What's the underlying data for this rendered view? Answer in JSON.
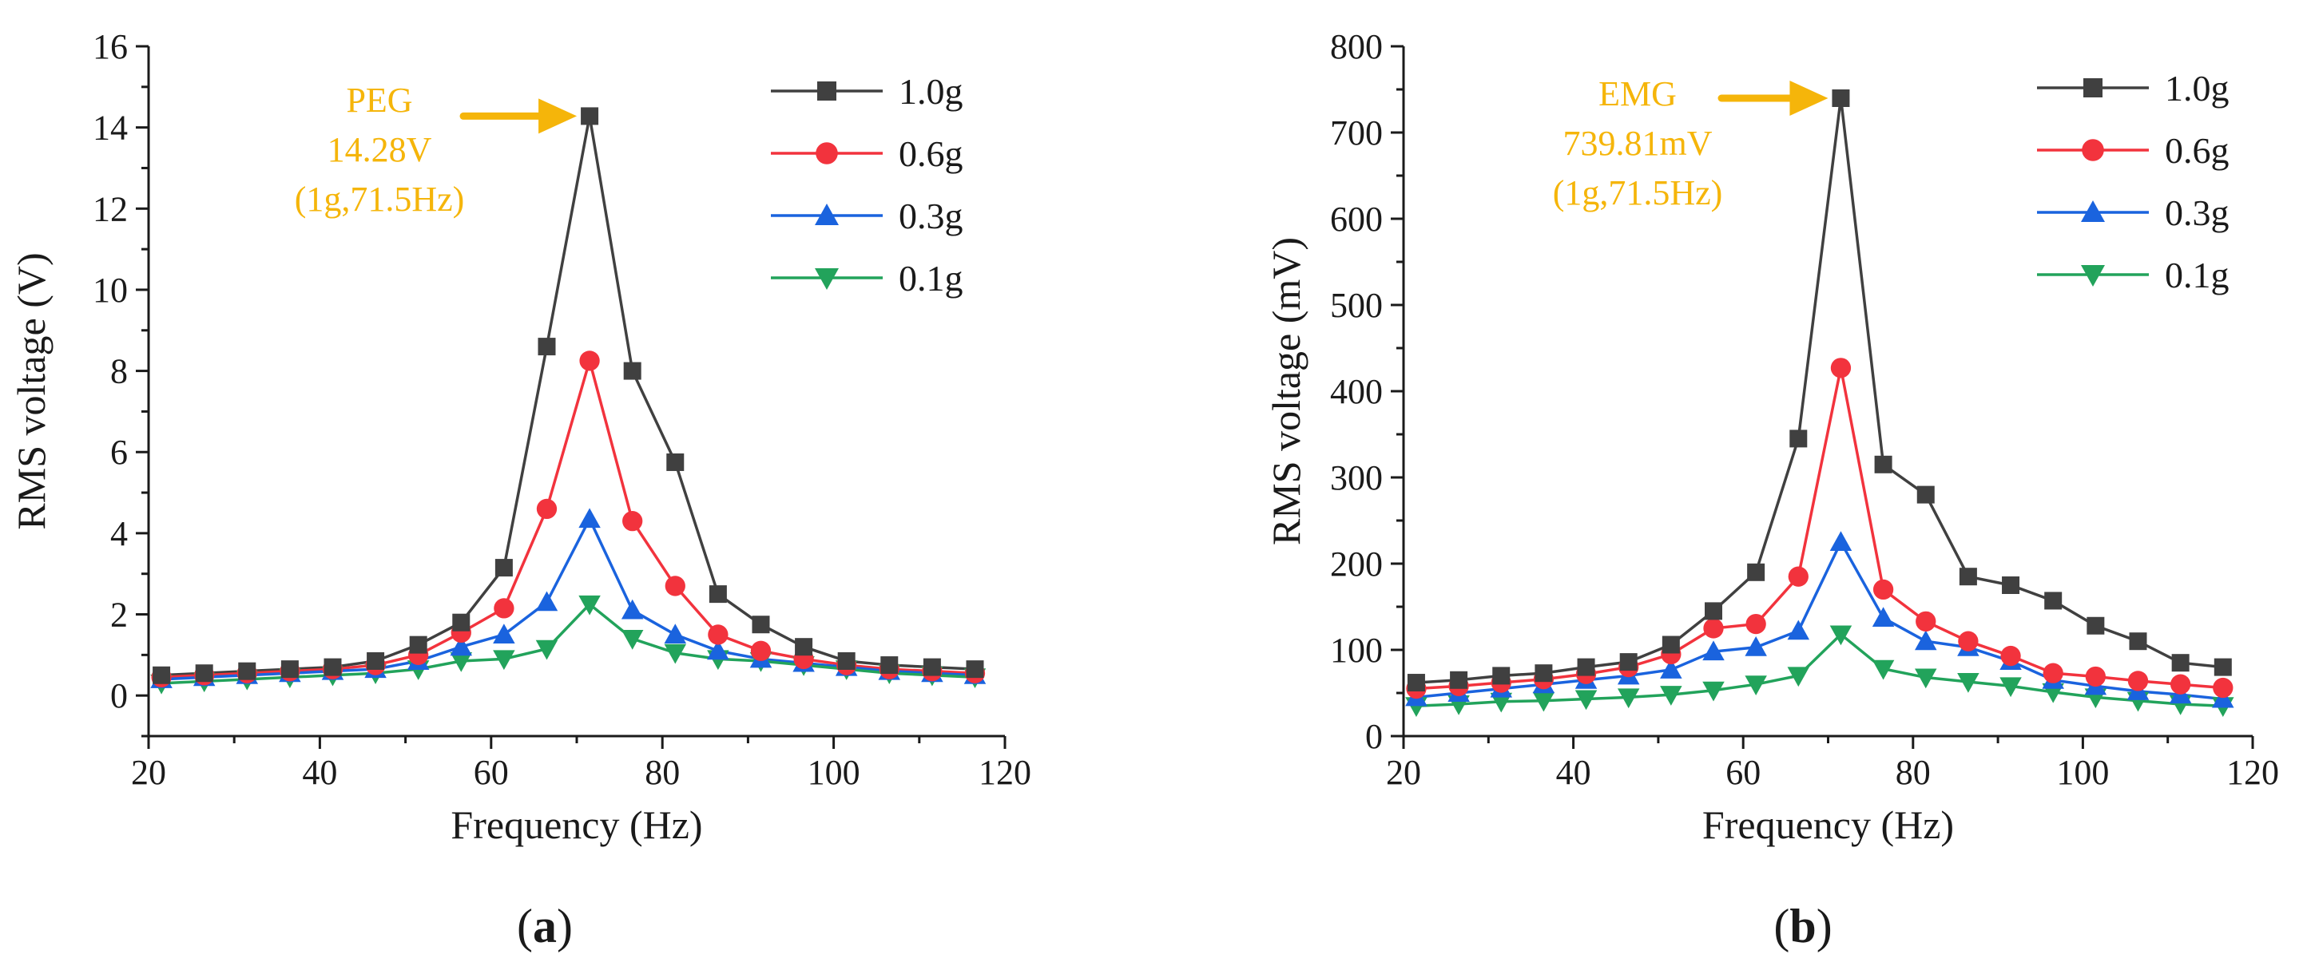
{
  "chart_data": [
    {
      "type": "line",
      "panel_label": "a",
      "xlabel": "Frequency (Hz)",
      "ylabel": "RMS voltage (V)",
      "xlim": [
        20,
        120
      ],
      "ylim": [
        -1,
        16
      ],
      "xticks": [
        20,
        40,
        60,
        80,
        100,
        120
      ],
      "yticks": [
        0,
        2,
        4,
        6,
        8,
        10,
        12,
        14,
        16
      ],
      "x": [
        21.5,
        26.5,
        31.5,
        36.5,
        41.5,
        46.5,
        51.5,
        56.5,
        61.5,
        66.5,
        71.5,
        76.5,
        81.5,
        86.5,
        91.5,
        96.5,
        101.5,
        106.5,
        111.5,
        116.5
      ],
      "legend_position": "top-right",
      "series": [
        {
          "name": "1.0g",
          "color": "#404040",
          "marker": "square",
          "values": [
            0.5,
            0.55,
            0.6,
            0.65,
            0.7,
            0.85,
            1.25,
            1.8,
            3.15,
            8.6,
            14.28,
            8.0,
            5.75,
            2.5,
            1.75,
            1.2,
            0.85,
            0.75,
            0.7,
            0.65
          ]
        },
        {
          "name": "0.6g",
          "color": "#f2333d",
          "marker": "circle",
          "values": [
            0.45,
            0.5,
            0.55,
            0.6,
            0.65,
            0.75,
            1.0,
            1.55,
            2.15,
            4.6,
            8.25,
            4.3,
            2.7,
            1.5,
            1.1,
            0.9,
            0.75,
            0.65,
            0.6,
            0.55
          ]
        },
        {
          "name": "0.3g",
          "color": "#1a63de",
          "marker": "triangle-up",
          "values": [
            0.4,
            0.45,
            0.5,
            0.55,
            0.6,
            0.65,
            0.85,
            1.2,
            1.5,
            2.3,
            4.35,
            2.1,
            1.5,
            1.1,
            0.9,
            0.8,
            0.7,
            0.6,
            0.55,
            0.5
          ]
        },
        {
          "name": "0.1g",
          "color": "#22a35b",
          "marker": "triangle-down",
          "values": [
            0.3,
            0.35,
            0.4,
            0.45,
            0.5,
            0.55,
            0.65,
            0.85,
            0.9,
            1.15,
            2.25,
            1.4,
            1.05,
            0.9,
            0.85,
            0.75,
            0.65,
            0.55,
            0.5,
            0.45
          ]
        }
      ],
      "annotation": {
        "lines": [
          "PEG",
          "14.28V",
          "(1g,71.5Hz)"
        ],
        "color": "#f5b50a",
        "arrow_target": {
          "x": 71.5,
          "y": 14.28
        }
      }
    },
    {
      "type": "line",
      "panel_label": "b",
      "xlabel": "Frequency (Hz)",
      "ylabel": "RMS voltage (mV)",
      "xlim": [
        20,
        120
      ],
      "ylim": [
        0,
        800
      ],
      "xticks": [
        20,
        40,
        60,
        80,
        100,
        120
      ],
      "yticks": [
        0,
        100,
        200,
        300,
        400,
        500,
        600,
        700,
        800
      ],
      "x": [
        21.5,
        26.5,
        31.5,
        36.5,
        41.5,
        46.5,
        51.5,
        56.5,
        61.5,
        66.5,
        71.5,
        76.5,
        81.5,
        86.5,
        91.5,
        96.5,
        101.5,
        106.5,
        111.5,
        116.5
      ],
      "legend_position": "top-right",
      "series": [
        {
          "name": "1.0g",
          "color": "#404040",
          "marker": "square",
          "values": [
            62,
            65,
            70,
            73,
            80,
            86,
            106,
            145,
            190,
            345,
            739.81,
            315,
            280,
            185,
            175,
            157,
            128,
            110,
            85,
            80
          ]
        },
        {
          "name": "0.6g",
          "color": "#f2333d",
          "marker": "circle",
          "values": [
            55,
            58,
            62,
            66,
            72,
            80,
            95,
            125,
            130,
            185,
            427,
            170,
            133,
            110,
            93,
            73,
            69,
            64,
            60,
            56
          ]
        },
        {
          "name": "0.3g",
          "color": "#1a63de",
          "marker": "triangle-up",
          "values": [
            45,
            50,
            55,
            60,
            65,
            70,
            77,
            98,
            103,
            122,
            225,
            137,
            110,
            103,
            87,
            65,
            58,
            52,
            48,
            43
          ]
        },
        {
          "name": "0.1g",
          "color": "#22a35b",
          "marker": "triangle-down",
          "values": [
            35,
            37,
            40,
            41,
            43,
            45,
            48,
            53,
            60,
            70,
            118,
            78,
            68,
            63,
            58,
            51,
            45,
            41,
            37,
            35
          ]
        }
      ],
      "annotation": {
        "lines": [
          "EMG",
          "739.81mV",
          "(1g,71.5Hz)"
        ],
        "color": "#f5b50a",
        "arrow_target": {
          "x": 71.5,
          "y": 739.81
        }
      }
    }
  ]
}
